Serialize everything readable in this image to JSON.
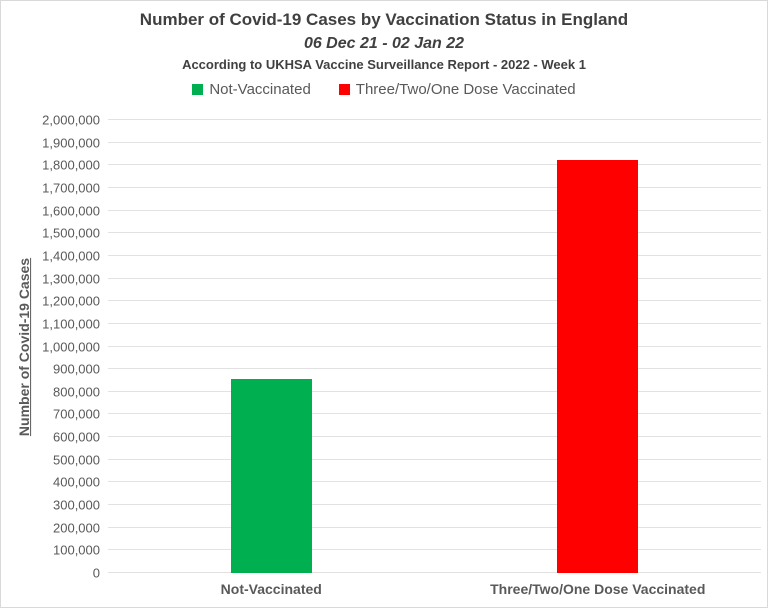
{
  "title": {
    "main": "Number of Covid-19 Cases by Vaccination Status in England",
    "subtitle": "06 Dec 21 - 02 Jan 22",
    "source_note": "According to UKHSA Vaccine Surveillance Report - 2022 - Week 1"
  },
  "legend": {
    "items": [
      {
        "label": "Not-Vaccinated",
        "color": "#00B050"
      },
      {
        "label": "Three/Two/One Dose Vaccinated",
        "color": "#FF0000"
      }
    ]
  },
  "chart_data": {
    "type": "bar",
    "title": "Number of Covid-19 Cases by Vaccination Status in England",
    "subtitle": "06 Dec 21 - 02 Jan 22",
    "source_note": "According to UKHSA Vaccine Surveillance Report - 2022 - Week 1",
    "categories": [
      "Not-Vaccinated",
      "Three/Two/One Dose Vaccinated"
    ],
    "values": [
      855000,
      1825000
    ],
    "bar_colors": [
      "#00B050",
      "#FF0000"
    ],
    "xlabel": "",
    "ylabel": "Number of Covid-19 Cases",
    "ylim": [
      0,
      2000000
    ],
    "ytick_step": 100000,
    "grid": "horizontal",
    "legend_position": "top"
  },
  "colors": {
    "title_text": "#404040",
    "axis_text": "#595959",
    "gridline": "#E2E2E2",
    "background": "#FFFFFF",
    "frame_border": "#D9D9D9",
    "series_green": "#00B050",
    "series_red": "#FF0000"
  }
}
